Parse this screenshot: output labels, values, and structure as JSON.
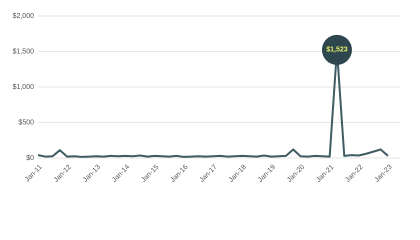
{
  "chart_data": {
    "type": "line",
    "categories": [
      "Jan-11",
      null,
      null,
      null,
      "Jan-12",
      null,
      null,
      null,
      "Jan-13",
      null,
      null,
      null,
      "Jan-14",
      null,
      null,
      null,
      "Jan-15",
      null,
      null,
      null,
      "Jan-16",
      null,
      null,
      null,
      "Jan-17",
      null,
      null,
      null,
      "Jan-18",
      null,
      null,
      null,
      "Jan-19",
      null,
      null,
      null,
      "Jan-20",
      null,
      null,
      null,
      "Jan-21",
      null,
      null,
      null,
      "Jan-22",
      null,
      null,
      null,
      "Jan-23"
    ],
    "values": [
      40,
      20,
      25,
      110,
      20,
      25,
      15,
      20,
      25,
      20,
      30,
      25,
      30,
      25,
      35,
      20,
      30,
      25,
      20,
      30,
      15,
      20,
      25,
      20,
      25,
      30,
      20,
      25,
      30,
      25,
      20,
      35,
      20,
      25,
      30,
      120,
      25,
      20,
      30,
      25,
      20,
      1523,
      30,
      40,
      35,
      60,
      90,
      120,
      30
    ],
    "value_labels": [
      null,
      null,
      null,
      null,
      null,
      null,
      null,
      null,
      null,
      null,
      null,
      null,
      null,
      null,
      null,
      null,
      null,
      null,
      null,
      null,
      null,
      null,
      null,
      null,
      null,
      null,
      null,
      null,
      null,
      null,
      null,
      null,
      null,
      null,
      null,
      null,
      null,
      null,
      null,
      null,
      null,
      "$1,523",
      null,
      null,
      null,
      null,
      null,
      null,
      null
    ],
    "color": "#3f5b63",
    "ylim": [
      0,
      2000
    ],
    "yticks": [
      {
        "value": 0,
        "label": "$0"
      },
      {
        "value": 500,
        "label": "$500"
      },
      {
        "value": 1000,
        "label": "$1,000"
      },
      {
        "value": 1500,
        "label": "$1,500"
      },
      {
        "value": 2000,
        "label": "$2,000"
      }
    ],
    "grid": true
  }
}
